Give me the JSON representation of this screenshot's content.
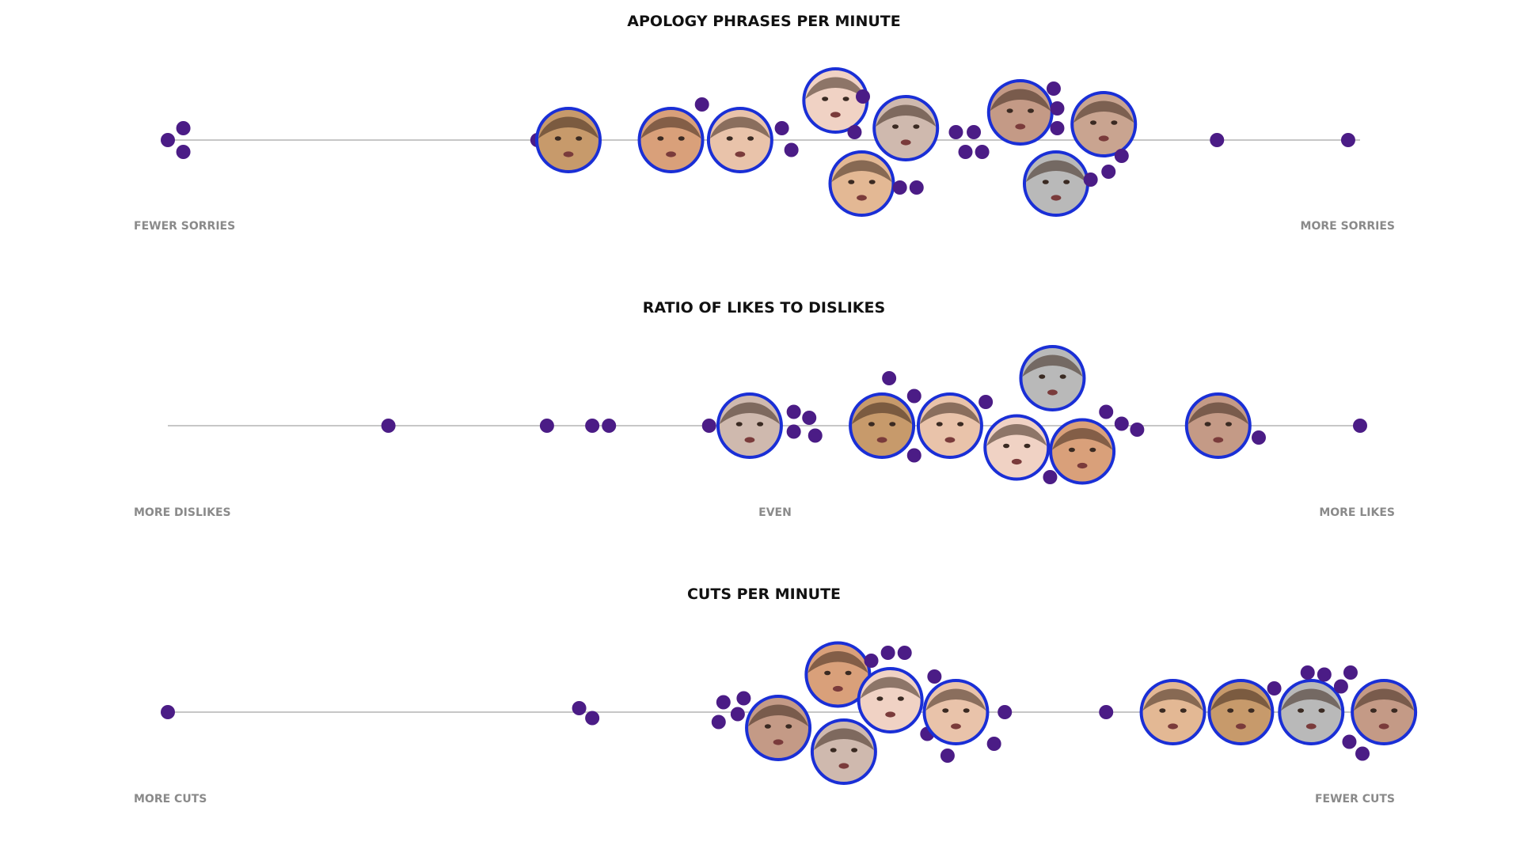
{
  "chart_data": [
    {
      "type": "scatter",
      "title": "APOLOGY PHRASES PER MINUTE",
      "left_label": "FEWER SORRIES",
      "right_label": "MORE SORRIES",
      "center_label": "",
      "x_range": [
        0,
        1
      ],
      "colors": {
        "dot": "#4b1c86",
        "ring": "#1a2fd6",
        "line": "#c7c7c7"
      },
      "points": [
        {
          "x": 0.0,
          "lane": 0,
          "kind": "dot"
        },
        {
          "x": 0.013,
          "lane": -0.3,
          "kind": "dot"
        },
        {
          "x": 0.013,
          "lane": 0.3,
          "kind": "dot"
        },
        {
          "x": 0.31,
          "lane": 0,
          "kind": "dot"
        },
        {
          "x": 0.336,
          "lane": 0,
          "kind": "face",
          "tone": "#c79a6b"
        },
        {
          "x": 0.422,
          "lane": 0,
          "kind": "face",
          "tone": "#d9a07a"
        },
        {
          "x": 0.448,
          "lane": -0.9,
          "kind": "dot"
        },
        {
          "x": 0.48,
          "lane": 0,
          "kind": "face",
          "tone": "#e9c3aa"
        },
        {
          "x": 0.515,
          "lane": -0.3,
          "kind": "dot"
        },
        {
          "x": 0.523,
          "lane": 0.25,
          "kind": "dot"
        },
        {
          "x": 0.56,
          "lane": -1.0,
          "kind": "face",
          "tone": "#f0d2c4"
        },
        {
          "x": 0.583,
          "lane": -1.1,
          "kind": "dot"
        },
        {
          "x": 0.576,
          "lane": -0.2,
          "kind": "dot"
        },
        {
          "x": 0.582,
          "lane": 1.1,
          "kind": "face",
          "tone": "#e3b894"
        },
        {
          "x": 0.619,
          "lane": -0.3,
          "kind": "face",
          "tone": "#cfb9ae"
        },
        {
          "x": 0.614,
          "lane": 1.2,
          "kind": "dot"
        },
        {
          "x": 0.628,
          "lane": 1.2,
          "kind": "dot"
        },
        {
          "x": 0.661,
          "lane": -0.2,
          "kind": "dot"
        },
        {
          "x": 0.669,
          "lane": 0.3,
          "kind": "dot"
        },
        {
          "x": 0.676,
          "lane": -0.2,
          "kind": "dot"
        },
        {
          "x": 0.683,
          "lane": 0.3,
          "kind": "dot"
        },
        {
          "x": 0.715,
          "lane": -0.7,
          "kind": "face",
          "tone": "#c49a86"
        },
        {
          "x": 0.743,
          "lane": -1.3,
          "kind": "dot"
        },
        {
          "x": 0.746,
          "lane": -0.8,
          "kind": "dot"
        },
        {
          "x": 0.746,
          "lane": -0.3,
          "kind": "dot"
        },
        {
          "x": 0.745,
          "lane": 1.1,
          "kind": "face",
          "tone": "#b9b9b9"
        },
        {
          "x": 0.785,
          "lane": -0.4,
          "kind": "face",
          "tone": "#c9a490"
        },
        {
          "x": 0.8,
          "lane": 0.4,
          "kind": "dot"
        },
        {
          "x": 0.789,
          "lane": 0.8,
          "kind": "dot"
        },
        {
          "x": 0.774,
          "lane": 1.0,
          "kind": "dot"
        },
        {
          "x": 0.88,
          "lane": 0,
          "kind": "dot"
        },
        {
          "x": 0.99,
          "lane": 0,
          "kind": "dot"
        }
      ]
    },
    {
      "type": "scatter",
      "title": "RATIO OF LIKES TO DISLIKES",
      "left_label": "MORE DISLIKES",
      "right_label": "MORE LIKES",
      "center_label": "EVEN",
      "x_range": [
        0,
        1
      ],
      "colors": {
        "dot": "#4b1c86",
        "ring": "#1a2fd6",
        "line": "#c7c7c7"
      },
      "points": [
        {
          "x": 0.185,
          "lane": 0,
          "kind": "dot"
        },
        {
          "x": 0.318,
          "lane": 0,
          "kind": "dot"
        },
        {
          "x": 0.356,
          "lane": 0,
          "kind": "dot"
        },
        {
          "x": 0.37,
          "lane": 0,
          "kind": "dot"
        },
        {
          "x": 0.454,
          "lane": 0,
          "kind": "dot"
        },
        {
          "x": 0.488,
          "lane": 0,
          "kind": "face",
          "tone": "#cfb9ae"
        },
        {
          "x": 0.525,
          "lane": -0.35,
          "kind": "dot"
        },
        {
          "x": 0.538,
          "lane": -0.2,
          "kind": "dot"
        },
        {
          "x": 0.525,
          "lane": 0.15,
          "kind": "dot"
        },
        {
          "x": 0.543,
          "lane": 0.25,
          "kind": "dot"
        },
        {
          "x": 0.599,
          "lane": 0,
          "kind": "face",
          "tone": "#c79a6b"
        },
        {
          "x": 0.605,
          "lane": -1.2,
          "kind": "dot"
        },
        {
          "x": 0.626,
          "lane": -0.75,
          "kind": "dot"
        },
        {
          "x": 0.626,
          "lane": 0.75,
          "kind": "dot"
        },
        {
          "x": 0.656,
          "lane": 0,
          "kind": "face",
          "tone": "#e9c3aa"
        },
        {
          "x": 0.686,
          "lane": -0.6,
          "kind": "dot"
        },
        {
          "x": 0.712,
          "lane": 0.55,
          "kind": "face",
          "tone": "#f0d2c4"
        },
        {
          "x": 0.742,
          "lane": -1.2,
          "kind": "face",
          "tone": "#b9b9b9"
        },
        {
          "x": 0.74,
          "lane": 1.3,
          "kind": "dot"
        },
        {
          "x": 0.767,
          "lane": 0.65,
          "kind": "face",
          "tone": "#d9a07a"
        },
        {
          "x": 0.787,
          "lane": -0.35,
          "kind": "dot"
        },
        {
          "x": 0.8,
          "lane": -0.05,
          "kind": "dot"
        },
        {
          "x": 0.813,
          "lane": 0.1,
          "kind": "dot"
        },
        {
          "x": 0.881,
          "lane": 0,
          "kind": "face",
          "tone": "#c49a86"
        },
        {
          "x": 0.915,
          "lane": 0.3,
          "kind": "dot"
        },
        {
          "x": 1.0,
          "lane": 0,
          "kind": "dot"
        }
      ]
    },
    {
      "type": "scatter",
      "title": "CUTS PER MINUTE",
      "left_label": "MORE CUTS",
      "right_label": "FEWER CUTS",
      "center_label": "",
      "x_range": [
        0,
        1
      ],
      "colors": {
        "dot": "#4b1c86",
        "ring": "#1a2fd6",
        "line": "#c7c7c7"
      },
      "points": [
        {
          "x": 0.0,
          "lane": 0,
          "kind": "dot"
        },
        {
          "x": 0.345,
          "lane": -0.1,
          "kind": "dot"
        },
        {
          "x": 0.356,
          "lane": 0.15,
          "kind": "dot"
        },
        {
          "x": 0.466,
          "lane": -0.25,
          "kind": "dot"
        },
        {
          "x": 0.483,
          "lane": -0.35,
          "kind": "dot"
        },
        {
          "x": 0.478,
          "lane": 0.05,
          "kind": "dot"
        },
        {
          "x": 0.462,
          "lane": 0.25,
          "kind": "dot"
        },
        {
          "x": 0.512,
          "lane": 0.4,
          "kind": "face",
          "tone": "#c49a86"
        },
        {
          "x": 0.562,
          "lane": -0.95,
          "kind": "face",
          "tone": "#d9a07a"
        },
        {
          "x": 0.567,
          "lane": 1.0,
          "kind": "face",
          "tone": "#cfb9ae"
        },
        {
          "x": 0.59,
          "lane": -1.3,
          "kind": "dot"
        },
        {
          "x": 0.604,
          "lane": -1.5,
          "kind": "dot"
        },
        {
          "x": 0.618,
          "lane": -1.5,
          "kind": "dot"
        },
        {
          "x": 0.606,
          "lane": -0.3,
          "kind": "face",
          "tone": "#f0d2c4"
        },
        {
          "x": 0.643,
          "lane": -0.9,
          "kind": "dot"
        },
        {
          "x": 0.637,
          "lane": 0.55,
          "kind": "dot"
        },
        {
          "x": 0.661,
          "lane": 0,
          "kind": "face",
          "tone": "#e9c3aa"
        },
        {
          "x": 0.654,
          "lane": 1.1,
          "kind": "dot"
        },
        {
          "x": 0.693,
          "lane": 0.8,
          "kind": "dot"
        },
        {
          "x": 0.702,
          "lane": 0,
          "kind": "dot"
        },
        {
          "x": 0.787,
          "lane": 0,
          "kind": "dot"
        },
        {
          "x": 0.843,
          "lane": 0,
          "kind": "face",
          "tone": "#e3b894"
        },
        {
          "x": 0.9,
          "lane": 0,
          "kind": "face",
          "tone": "#c79a6b"
        },
        {
          "x": 0.928,
          "lane": -0.6,
          "kind": "dot"
        },
        {
          "x": 0.959,
          "lane": 0,
          "kind": "face",
          "tone": "#b9b9b9"
        },
        {
          "x": 0.956,
          "lane": -1.0,
          "kind": "dot"
        },
        {
          "x": 0.97,
          "lane": -0.95,
          "kind": "dot"
        },
        {
          "x": 0.984,
          "lane": -0.65,
          "kind": "dot"
        },
        {
          "x": 0.992,
          "lane": -1.0,
          "kind": "dot"
        },
        {
          "x": 0.991,
          "lane": 0.75,
          "kind": "dot"
        },
        {
          "x": 1.002,
          "lane": 1.05,
          "kind": "dot"
        },
        {
          "x": 1.02,
          "lane": 0,
          "kind": "face",
          "tone": "#c49a86"
        }
      ]
    }
  ]
}
